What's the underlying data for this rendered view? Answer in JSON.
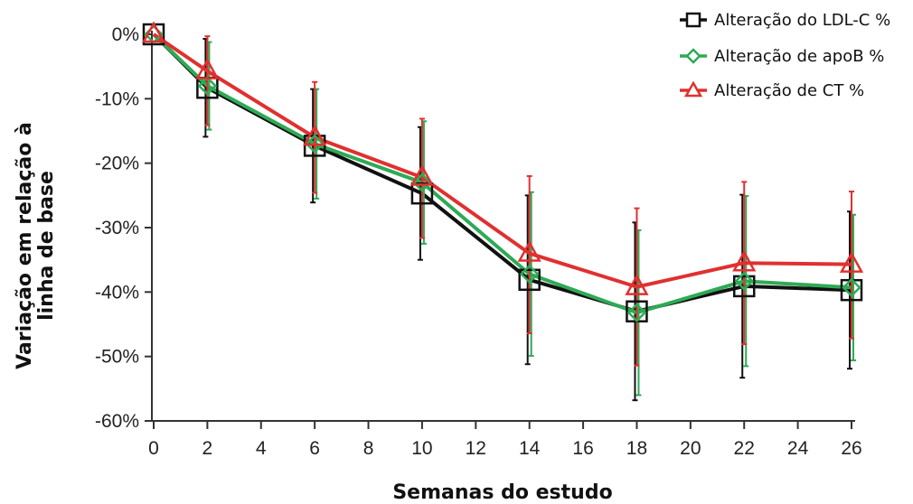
{
  "chart_data": {
    "type": "line",
    "title": "",
    "xlabel": "Semanas do estudo",
    "ylabel_lines": [
      "Variação em relação à",
      "linha de base"
    ],
    "x": [
      0,
      2,
      6,
      10,
      14,
      18,
      22,
      26
    ],
    "xticks": [
      0,
      2,
      4,
      6,
      8,
      10,
      12,
      14,
      16,
      18,
      20,
      22,
      24,
      26
    ],
    "xtick_labels": [
      "0",
      "2",
      "4",
      "6",
      "8",
      "10",
      "12",
      "14",
      "16",
      "18",
      "20",
      "22",
      "24",
      "26"
    ],
    "xlim": [
      0,
      26
    ],
    "yticks": [
      0,
      -10,
      -20,
      -30,
      -40,
      -50,
      -60
    ],
    "ytick_labels": [
      "0%",
      "-10%",
      "-20%",
      "-30%",
      "-40%",
      "-50%",
      "-60%"
    ],
    "ylim": [
      -60,
      0
    ],
    "grid": false,
    "legend_position": "top-right",
    "series": [
      {
        "name": "Alteração do LDL-C %",
        "color": "#111111",
        "marker": "square",
        "values": [
          0,
          -8.3,
          -17.3,
          -24.7,
          -38.1,
          -43.0,
          -39.1,
          -39.7
        ],
        "err_low": [
          0,
          7.6,
          8.8,
          10.3,
          13.1,
          13.8,
          14.2,
          12.2
        ],
        "err_high": [
          0,
          7.6,
          8.8,
          10.3,
          13.1,
          13.8,
          14.2,
          12.2
        ]
      },
      {
        "name": "Alteração de apoB %",
        "color": "#2eaa55",
        "marker": "diamond",
        "values": [
          0,
          -8.0,
          -17.0,
          -23.0,
          -37.2,
          -43.2,
          -38.3,
          -39.3
        ],
        "err_low": [
          0,
          6.8,
          8.5,
          9.5,
          12.7,
          12.8,
          13.2,
          11.3
        ],
        "err_high": [
          0,
          6.8,
          8.5,
          9.5,
          12.7,
          12.8,
          13.2,
          11.3
        ]
      },
      {
        "name": "Alteração de CT %",
        "color": "#e03030",
        "marker": "triangle",
        "values": [
          0,
          -5.7,
          -16.0,
          -22.2,
          -34.0,
          -39.2,
          -35.5,
          -35.7
        ],
        "err_low": [
          0,
          8.4,
          8.6,
          9.4,
          12.4,
          12.2,
          12.6,
          11.5
        ],
        "err_high": [
          0,
          5.4,
          8.6,
          9.1,
          12.0,
          12.2,
          12.6,
          11.3
        ]
      }
    ]
  }
}
